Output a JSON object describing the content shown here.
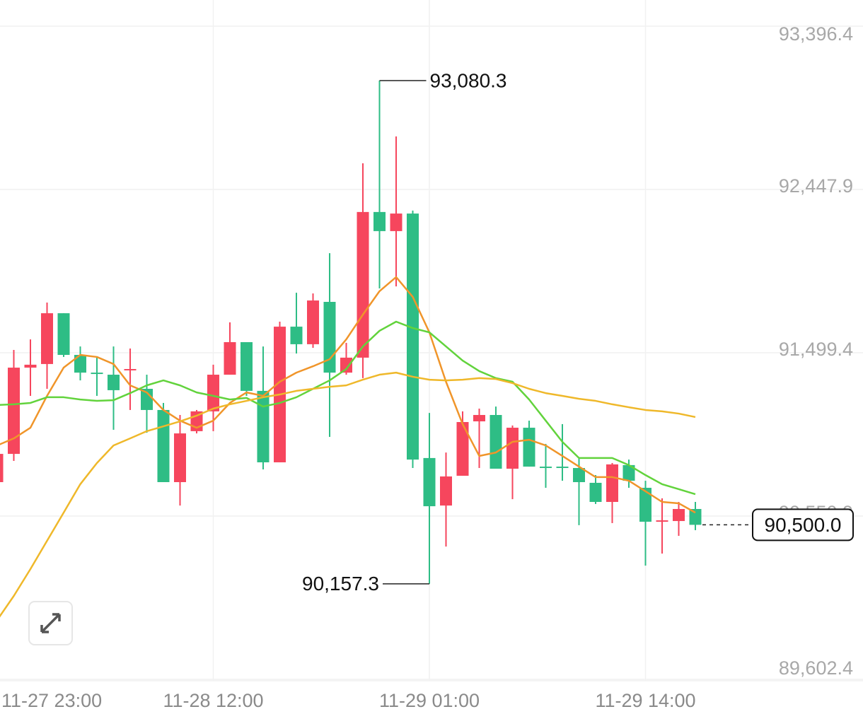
{
  "chart_data": {
    "type": "candlestick",
    "categories": [
      "11-27 23:00",
      null,
      null,
      null,
      null,
      null,
      null,
      null,
      null,
      null,
      null,
      null,
      null,
      "11-28 12:00",
      null,
      null,
      null,
      null,
      null,
      null,
      null,
      null,
      null,
      null,
      null,
      null,
      "11-29 01:00",
      null,
      null,
      null,
      null,
      null,
      null,
      null,
      null,
      null,
      null,
      null,
      null,
      "11-29 14:00",
      null,
      null,
      null
    ],
    "open": [
      90748,
      90912,
      91413,
      91434,
      91729,
      91487,
      91384,
      91372,
      91397,
      91290,
      91167,
      90748,
      91044,
      91159,
      91372,
      91561,
      91278,
      90863,
      91651,
      91549,
      91795,
      91384,
      91471,
      92317,
      92206,
      92308,
      90888,
      90612,
      90785,
      91101,
      91138,
      90826,
      91064,
      90838,
      90838,
      90830,
      90744,
      90633,
      90847,
      90715,
      90518,
      90522,
      90592
    ],
    "high": [
      90953,
      91516,
      91577,
      91791,
      91729,
      91536,
      91475,
      91536,
      91524,
      91372,
      91208,
      91138,
      91167,
      91430,
      91676,
      91561,
      91536,
      91680,
      91848,
      91844,
      92078,
      91557,
      92600,
      93080.3,
      92756,
      92325,
      91150,
      90920,
      91159,
      91175,
      91187,
      91077,
      91105,
      90970,
      91085,
      90888,
      90789,
      90859,
      90879,
      90756,
      90654,
      90633,
      90633
    ],
    "low": [
      90748,
      90871,
      91249,
      91290,
      91475,
      91339,
      91249,
      91052,
      91167,
      91035,
      90748,
      90612,
      91031,
      91044,
      91372,
      91249,
      90822,
      90863,
      91495,
      91528,
      91011,
      91372,
      91352,
      91873,
      91885,
      90830,
      90157.3,
      90374,
      90785,
      90830,
      90826,
      90649,
      90838,
      90715,
      90756,
      90498,
      90621,
      90510,
      90715,
      90263,
      90333,
      90436,
      90469
    ],
    "close": [
      90912,
      91413,
      91430,
      91729,
      91487,
      91384,
      91376,
      91282,
      91405,
      91167,
      90748,
      91031,
      91159,
      91372,
      91561,
      91278,
      90863,
      91651,
      91549,
      91803,
      91384,
      91471,
      92317,
      92206,
      92308,
      90879,
      90608,
      90781,
      91097,
      91138,
      90826,
      91064,
      90838,
      90830,
      90830,
      90748,
      90633,
      90851,
      90756,
      90518,
      90526,
      90592,
      90500
    ],
    "up_color": "#f6465d",
    "down_color": "#2ebd85",
    "moving_averages": [
      {
        "color": "#f0952a",
        "values": [
          90961,
          91002,
          91064,
          91249,
          91413,
          91487,
          91475,
          91434,
          91310,
          91269,
          91167,
          91105,
          91064,
          91105,
          91208,
          91269,
          91249,
          91331,
          91384,
          91421,
          91462,
          91577,
          91721,
          91857,
          91939,
          91824,
          91618,
          91331,
          91085,
          90900,
          90920,
          90982,
          90994,
          90961,
          90900,
          90838,
          90777,
          90777,
          90756,
          90695,
          90633,
          90625,
          90571
        ]
      },
      {
        "color": "#62d33c",
        "values": [
          91196,
          91200,
          91208,
          91241,
          91241,
          91228,
          91220,
          91224,
          91265,
          91310,
          91339,
          91310,
          91269,
          91249,
          91228,
          91237,
          91187,
          91208,
          91241,
          91290,
          91339,
          91405,
          91536,
          91627,
          91680,
          91643,
          91618,
          91536,
          91454,
          91393,
          91352,
          91331,
          91228,
          91105,
          90982,
          90888,
          90888,
          90888,
          90847,
          90789,
          90736,
          90707,
          90678
        ]
      },
      {
        "color": "#efb82a",
        "values": [
          89947,
          90087,
          90243,
          90407,
          90571,
          90736,
          90859,
          90961,
          91002,
          91044,
          91072,
          91101,
          91134,
          91175,
          91200,
          91220,
          91241,
          91257,
          91278,
          91290,
          91302,
          91310,
          91343,
          91372,
          91384,
          91360,
          91343,
          91339,
          91343,
          91352,
          91347,
          91323,
          91290,
          91265,
          91249,
          91232,
          91220,
          91200,
          91183,
          91167,
          91159,
          91146,
          91126
        ]
      }
    ],
    "ylim": [
      89602.4,
      93396.4
    ],
    "yticks": [
      {
        "value": 89602.4,
        "label": "89,602.4"
      },
      {
        "value": 90550.9,
        "label": "90,550.9"
      },
      {
        "value": 91499.4,
        "label": "91,499.4"
      },
      {
        "value": 92447.9,
        "label": "92,447.9"
      },
      {
        "value": 93396.4,
        "label": "93,396.4"
      }
    ],
    "grid": true,
    "annotations": [
      {
        "value": 93080.3,
        "label": "93,080.3"
      },
      {
        "value": 90157.3,
        "label": "90,157.3"
      }
    ],
    "last_price": {
      "value": 90500,
      "label": "90,500.0"
    }
  }
}
